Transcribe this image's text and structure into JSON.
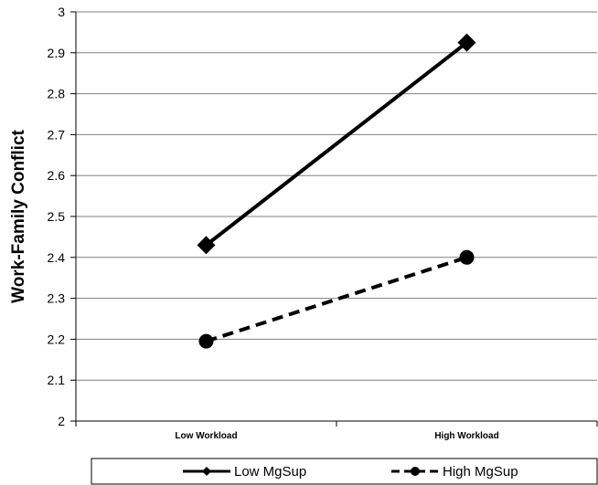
{
  "chart_data": {
    "type": "line",
    "title": "",
    "xlabel": "",
    "ylabel": "Work-Family Conflict",
    "categories": [
      "Low Workload",
      "High Workload"
    ],
    "ylim": [
      2,
      3
    ],
    "yticks": [
      "2",
      "2.1",
      "2.2",
      "2.3",
      "2.4",
      "2.5",
      "2.6",
      "2.7",
      "2.8",
      "2.9",
      "3"
    ],
    "grid": true,
    "legend_position": "bottom",
    "series": [
      {
        "name": "Low MgSup",
        "values": [
          2.43,
          2.925
        ],
        "line_style": "solid",
        "marker": "diamond",
        "color": "#000000"
      },
      {
        "name": "High MgSup",
        "values": [
          2.195,
          2.4
        ],
        "line_style": "dashed",
        "marker": "circle",
        "color": "#000000"
      }
    ]
  }
}
